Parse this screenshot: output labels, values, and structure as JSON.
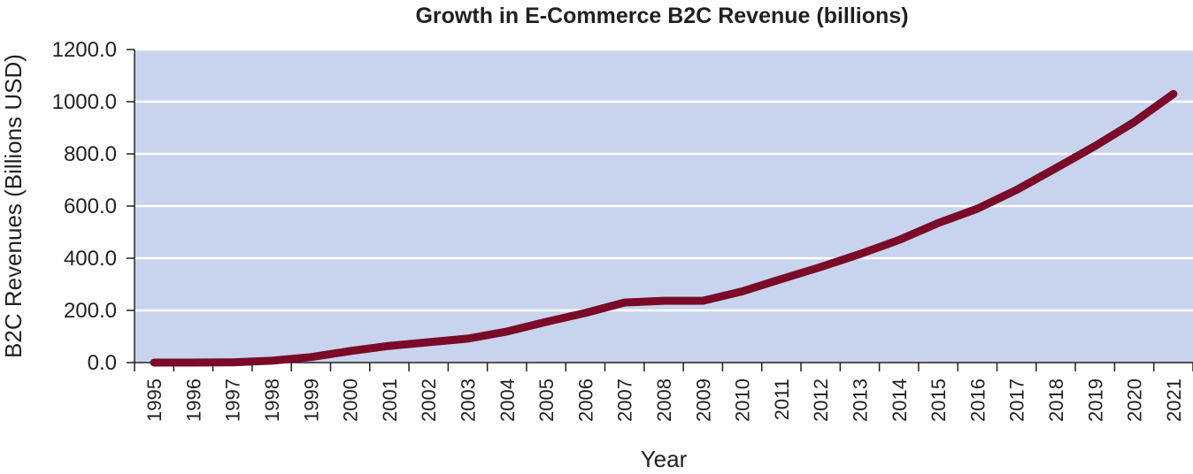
{
  "chart_data": {
    "type": "line",
    "title": "Growth in E-Commerce B2C Revenue (billions)",
    "xlabel": "Year",
    "ylabel": "B2C Revenues (Billions USD)",
    "ylim": [
      0,
      1200
    ],
    "y_ticks": [
      "0.0",
      "200.0",
      "400.0",
      "600.0",
      "800.0",
      "1000.0",
      "1200.0"
    ],
    "y_tick_values": [
      0,
      200,
      400,
      600,
      800,
      1000,
      1200
    ],
    "categories": [
      "1995",
      "1996",
      "1997",
      "1998",
      "1999",
      "2000",
      "2001",
      "2002",
      "2003",
      "2004",
      "2005",
      "2006",
      "2007",
      "2008",
      "2009",
      "2010",
      "2011",
      "2012",
      "2013",
      "2014",
      "2015",
      "2016",
      "2017",
      "2018",
      "2019",
      "2020",
      "2021"
    ],
    "series": [
      {
        "values": [
          0,
          0,
          1,
          7,
          21,
          44,
          64,
          78,
          92,
          119,
          156,
          190,
          230,
          237,
          237,
          273,
          320,
          366,
          416,
          470,
          535,
          590,
          662,
          745,
          830,
          922,
          1030
        ]
      }
    ],
    "grid": true,
    "colors": {
      "plot_bg": "#c8d4ed",
      "grid": "#ffffff",
      "line": "#7a0a28",
      "axis": "#231f20"
    }
  }
}
